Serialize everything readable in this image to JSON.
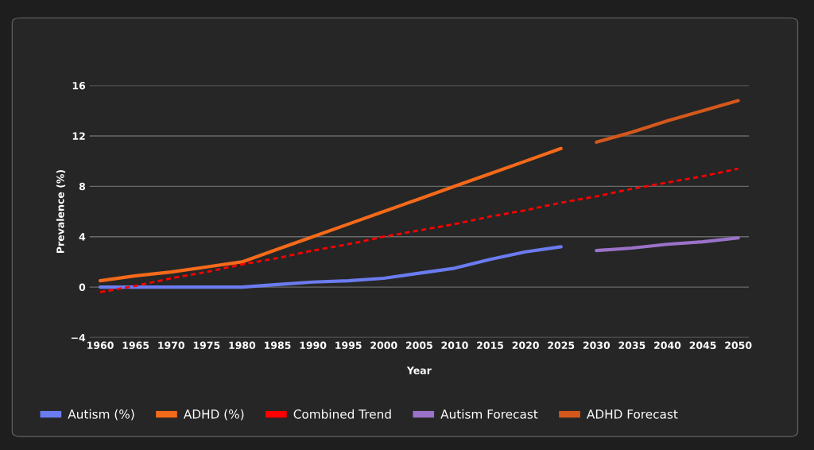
{
  "chart_data": {
    "type": "line",
    "xlabel": "Year",
    "ylabel": "Prevalence (%)",
    "categories": [
      "1960",
      "1965",
      "1970",
      "1975",
      "1980",
      "1985",
      "1990",
      "1995",
      "2000",
      "2005",
      "2010",
      "2015",
      "2020",
      "2025",
      "2030",
      "2035",
      "2040",
      "2045",
      "2050"
    ],
    "series": [
      {
        "name": "Autism (%)",
        "color": "#6b7cf0",
        "values": [
          0,
          0,
          0,
          0,
          0,
          0.2,
          0.4,
          0.5,
          0.7,
          1.1,
          1.5,
          2.2,
          2.8,
          3.2,
          null,
          null,
          null,
          null,
          null
        ]
      },
      {
        "name": "ADHD (%)",
        "color": "#f56a1a",
        "values": [
          0.5,
          0.9,
          1.2,
          1.6,
          2,
          3,
          4,
          5,
          6,
          7,
          8,
          9,
          10,
          11,
          null,
          null,
          null,
          null,
          null
        ]
      },
      {
        "name": "Combined Trend",
        "color": "#ff0000",
        "line_style": "dashed",
        "values": [
          -0.4,
          0.1,
          0.7,
          1.2,
          1.8,
          2.3,
          2.9,
          3.4,
          4.0,
          4.5,
          5.0,
          5.6,
          6.1,
          6.7,
          7.2,
          7.8,
          8.3,
          8.8,
          9.4
        ]
      },
      {
        "name": "Autism Forecast",
        "color": "#9b72c9",
        "values": [
          null,
          null,
          null,
          null,
          null,
          null,
          null,
          null,
          null,
          null,
          null,
          null,
          null,
          null,
          2.9,
          3.1,
          3.4,
          3.6,
          3.9
        ]
      },
      {
        "name": "ADHD Forecast",
        "color": "#d4581c",
        "values": [
          null,
          null,
          null,
          null,
          null,
          null,
          null,
          null,
          null,
          null,
          null,
          null,
          null,
          null,
          11.5,
          12.3,
          13.2,
          14.0,
          14.8
        ]
      }
    ],
    "ylim": [
      -4,
      16
    ],
    "yticks": [
      {
        "value": -4,
        "label": "−4"
      },
      0,
      4,
      8,
      12,
      16
    ],
    "grid": "y",
    "legend": "bottom left",
    "marker": "none"
  }
}
